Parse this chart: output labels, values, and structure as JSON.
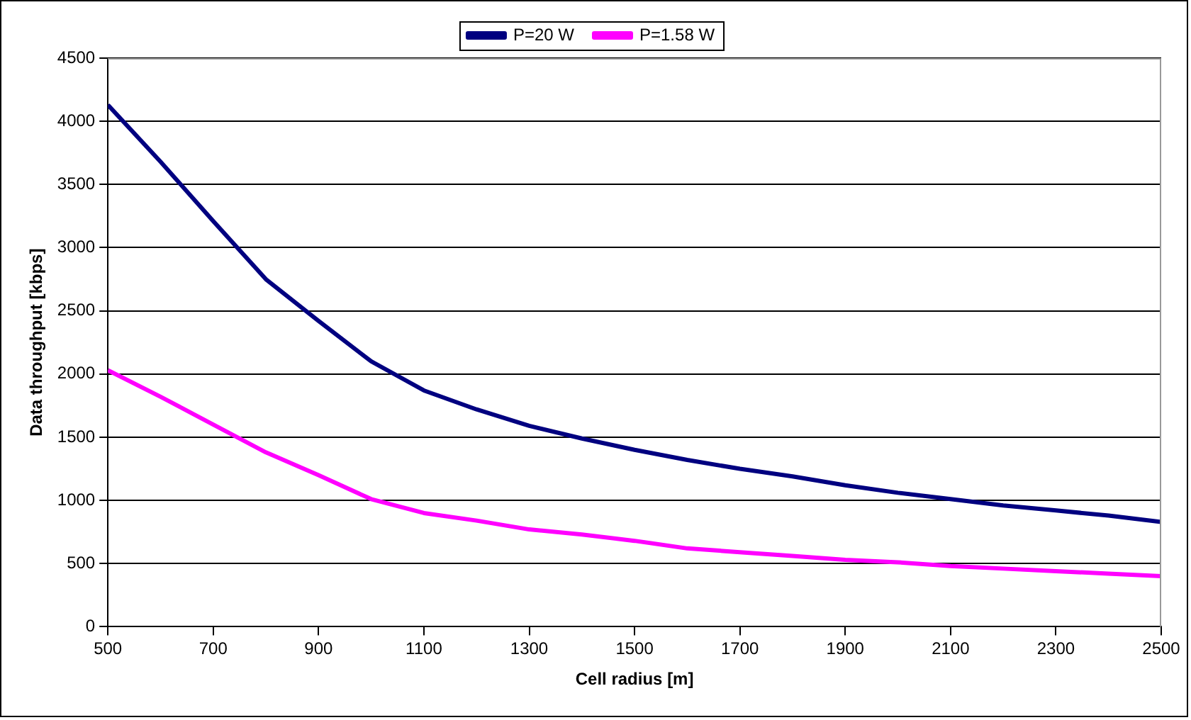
{
  "chart_data": {
    "type": "line",
    "xlabel": "Cell radius [m]",
    "ylabel": "Data throughput [kbps]",
    "x": [
      500,
      600,
      700,
      800,
      900,
      1000,
      1100,
      1200,
      1300,
      1400,
      1500,
      1600,
      1700,
      1800,
      1900,
      2000,
      2100,
      2200,
      2300,
      2400,
      2500
    ],
    "series": [
      {
        "name": "P=20 W",
        "color": "#000080",
        "values": [
          4130,
          3680,
          3210,
          2750,
          2420,
          2100,
          1870,
          1720,
          1590,
          1490,
          1400,
          1320,
          1250,
          1190,
          1120,
          1060,
          1010,
          960,
          920,
          880,
          830
        ]
      },
      {
        "name": "P=1.58 W",
        "color": "#ff00ff",
        "values": [
          2030,
          1820,
          1600,
          1380,
          1200,
          1010,
          900,
          840,
          770,
          730,
          680,
          620,
          590,
          560,
          530,
          510,
          480,
          460,
          440,
          420,
          400
        ]
      }
    ],
    "xlim": [
      500,
      2500
    ],
    "xticks": [
      500,
      700,
      900,
      1100,
      1300,
      1500,
      1700,
      1900,
      2100,
      2300,
      2500
    ],
    "ylim": [
      0,
      4500
    ],
    "yticks": [
      0,
      500,
      1000,
      1500,
      2000,
      2500,
      3000,
      3500,
      4000,
      4500
    ],
    "grid": "y",
    "legend": "top",
    "marker": "none",
    "line_style": "solid"
  }
}
